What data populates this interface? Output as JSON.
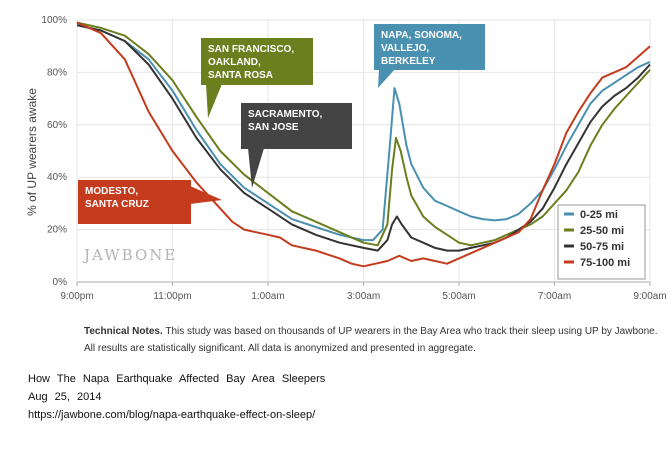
{
  "chart_data": {
    "type": "line",
    "title": "",
    "xlabel": "",
    "ylabel": "% of UP wearers awake",
    "watermark": "JAWBONE",
    "x_unit": "hours since 9:00pm",
    "xlim": [
      0,
      12
    ],
    "ylim": [
      0,
      100
    ],
    "x_ticks": [
      {
        "value": 0,
        "label": "9:00pm"
      },
      {
        "value": 2,
        "label": "11:00pm"
      },
      {
        "value": 4,
        "label": "1:00am"
      },
      {
        "value": 6,
        "label": "3:00am"
      },
      {
        "value": 8,
        "label": "5:00am"
      },
      {
        "value": 10,
        "label": "7:00am"
      },
      {
        "value": 12,
        "label": "9:00am"
      }
    ],
    "y_ticks": [
      {
        "value": 0,
        "label": "0%"
      },
      {
        "value": 20,
        "label": "20%"
      },
      {
        "value": 40,
        "label": "40%"
      },
      {
        "value": 60,
        "label": "60%"
      },
      {
        "value": 80,
        "label": "80%"
      },
      {
        "value": 100,
        "label": "100%"
      }
    ],
    "grid": true,
    "legend_position": "bottom-right",
    "series": [
      {
        "name": "0-25 mi",
        "color": "#4a90b0",
        "points": [
          [
            0,
            98
          ],
          [
            0.5,
            96
          ],
          [
            1,
            92
          ],
          [
            1.5,
            85
          ],
          [
            2,
            73
          ],
          [
            2.5,
            58
          ],
          [
            3,
            45
          ],
          [
            3.5,
            36
          ],
          [
            4,
            30
          ],
          [
            4.5,
            24
          ],
          [
            5,
            21
          ],
          [
            5.5,
            18
          ],
          [
            6,
            16
          ],
          [
            6.2,
            16
          ],
          [
            6.4,
            20
          ],
          [
            6.55,
            52
          ],
          [
            6.65,
            74
          ],
          [
            6.75,
            68
          ],
          [
            6.9,
            52
          ],
          [
            7,
            45
          ],
          [
            7.25,
            36
          ],
          [
            7.5,
            31
          ],
          [
            7.75,
            29
          ],
          [
            8,
            27
          ],
          [
            8.25,
            25
          ],
          [
            8.5,
            24
          ],
          [
            8.75,
            23.5
          ],
          [
            9,
            24
          ],
          [
            9.25,
            26
          ],
          [
            9.5,
            30
          ],
          [
            9.75,
            35
          ],
          [
            10,
            43
          ],
          [
            10.25,
            52
          ],
          [
            10.5,
            60
          ],
          [
            10.75,
            68
          ],
          [
            11,
            73
          ],
          [
            11.25,
            76
          ],
          [
            11.5,
            79
          ],
          [
            11.75,
            82
          ],
          [
            12,
            84
          ]
        ]
      },
      {
        "name": "25-50 mi",
        "color": "#6b7f1e",
        "points": [
          [
            0,
            99
          ],
          [
            0.5,
            97
          ],
          [
            1,
            94
          ],
          [
            1.5,
            87
          ],
          [
            2,
            77
          ],
          [
            2.5,
            63
          ],
          [
            3,
            50
          ],
          [
            3.5,
            41
          ],
          [
            4,
            34
          ],
          [
            4.5,
            27
          ],
          [
            5,
            23
          ],
          [
            5.5,
            19
          ],
          [
            6,
            15
          ],
          [
            6.3,
            14
          ],
          [
            6.5,
            22
          ],
          [
            6.6,
            43
          ],
          [
            6.68,
            55
          ],
          [
            6.78,
            50
          ],
          [
            6.9,
            40
          ],
          [
            7,
            33
          ],
          [
            7.25,
            25
          ],
          [
            7.5,
            21
          ],
          [
            7.75,
            18
          ],
          [
            8,
            15
          ],
          [
            8.25,
            14
          ],
          [
            8.5,
            15
          ],
          [
            8.75,
            16
          ],
          [
            9,
            18
          ],
          [
            9.25,
            20
          ],
          [
            9.5,
            22
          ],
          [
            9.75,
            25
          ],
          [
            10,
            30
          ],
          [
            10.25,
            35
          ],
          [
            10.5,
            42
          ],
          [
            10.75,
            52
          ],
          [
            11,
            60
          ],
          [
            11.25,
            66
          ],
          [
            11.5,
            71
          ],
          [
            11.75,
            76
          ],
          [
            12,
            81
          ]
        ]
      },
      {
        "name": "50-75 mi",
        "color": "#333333",
        "points": [
          [
            0,
            98
          ],
          [
            0.5,
            96
          ],
          [
            1,
            92
          ],
          [
            1.5,
            83
          ],
          [
            2,
            70
          ],
          [
            2.5,
            55
          ],
          [
            3,
            43
          ],
          [
            3.5,
            34
          ],
          [
            4,
            28
          ],
          [
            4.5,
            22
          ],
          [
            5,
            18
          ],
          [
            5.5,
            15
          ],
          [
            6,
            13
          ],
          [
            6.3,
            12
          ],
          [
            6.5,
            16
          ],
          [
            6.6,
            22
          ],
          [
            6.7,
            25
          ],
          [
            6.8,
            22
          ],
          [
            7,
            17
          ],
          [
            7.25,
            15
          ],
          [
            7.5,
            13
          ],
          [
            7.75,
            12
          ],
          [
            8,
            12
          ],
          [
            8.25,
            13
          ],
          [
            8.5,
            14
          ],
          [
            8.75,
            15
          ],
          [
            9,
            17
          ],
          [
            9.25,
            20
          ],
          [
            9.5,
            23
          ],
          [
            9.75,
            28
          ],
          [
            10,
            36
          ],
          [
            10.25,
            45
          ],
          [
            10.5,
            53
          ],
          [
            10.75,
            61
          ],
          [
            11,
            67
          ],
          [
            11.25,
            71
          ],
          [
            11.5,
            74
          ],
          [
            11.75,
            78
          ],
          [
            12,
            83
          ]
        ]
      },
      {
        "name": "75-100 mi",
        "color": "#c43b1e",
        "points": [
          [
            0,
            99
          ],
          [
            0.5,
            95
          ],
          [
            1,
            85
          ],
          [
            1.5,
            65
          ],
          [
            2,
            50
          ],
          [
            2.5,
            38
          ],
          [
            3,
            28
          ],
          [
            3.25,
            23
          ],
          [
            3.5,
            20
          ],
          [
            4,
            18
          ],
          [
            4.25,
            17
          ],
          [
            4.5,
            14
          ],
          [
            5,
            12
          ],
          [
            5.5,
            9
          ],
          [
            5.75,
            7
          ],
          [
            6,
            6
          ],
          [
            6.25,
            7
          ],
          [
            6.5,
            8
          ],
          [
            6.75,
            10
          ],
          [
            7,
            8
          ],
          [
            7.25,
            9
          ],
          [
            7.5,
            8
          ],
          [
            7.75,
            7
          ],
          [
            8,
            9
          ],
          [
            8.25,
            11
          ],
          [
            8.5,
            13
          ],
          [
            8.75,
            15
          ],
          [
            9,
            17
          ],
          [
            9.25,
            19
          ],
          [
            9.5,
            24
          ],
          [
            9.75,
            35
          ],
          [
            10,
            45
          ],
          [
            10.25,
            57
          ],
          [
            10.5,
            65
          ],
          [
            10.75,
            72
          ],
          [
            11,
            78
          ],
          [
            11.25,
            80
          ],
          [
            11.5,
            82
          ],
          [
            11.75,
            86
          ],
          [
            12,
            90
          ]
        ]
      }
    ],
    "annotations": [
      {
        "label_lines": [
          "SAN FRANCISCO,",
          "OAKLAND,",
          "SANTA ROSA"
        ],
        "color": "#6b7f1e"
      },
      {
        "label_lines": [
          "SACRAMENTO,",
          "SAN JOSE"
        ],
        "color": "#444444"
      },
      {
        "label_lines": [
          "NAPA, SONOMA,",
          "VALLEJO,",
          "BERKELEY"
        ],
        "color": "#4a90b0"
      },
      {
        "label_lines": [
          "MODESTO,",
          "SANTA CRUZ"
        ],
        "color": "#c43b1e"
      }
    ]
  },
  "notes": {
    "heading": "Technical Notes.",
    "body": "This study was based on thousands of UP wearers in the Bay Area who track their sleep using UP by Jawbone. All results are statistically significant. All data is anonymized and presented in aggregate."
  },
  "caption": {
    "title": "How The Napa Earthquake Affected Bay Area Sleepers",
    "date": "Aug 25, 2014",
    "url": "https://jawbone.com/blog/napa-earthquake-effect-on-sleep/"
  }
}
